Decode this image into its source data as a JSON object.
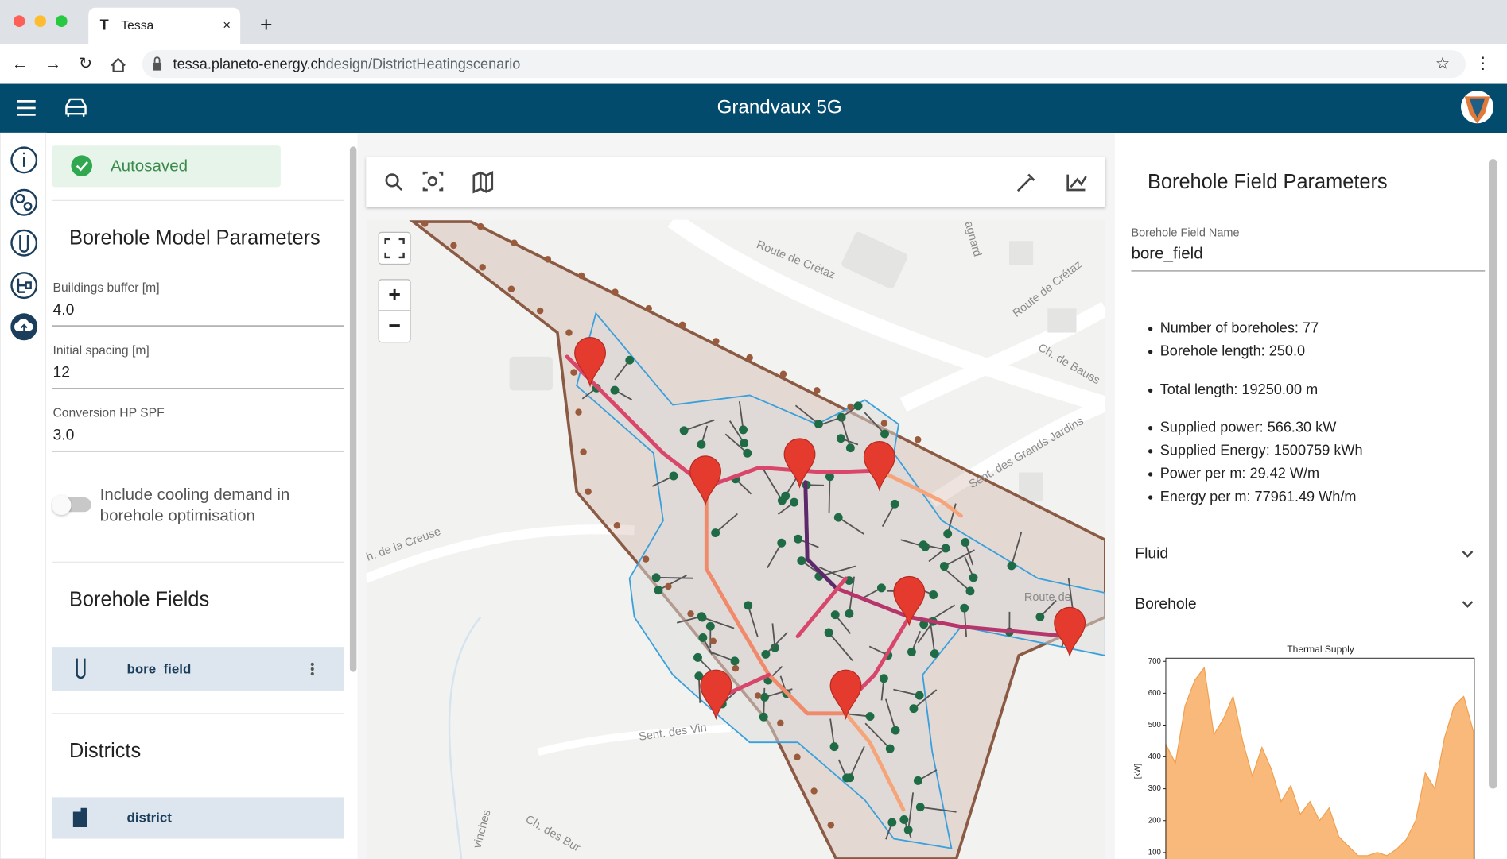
{
  "browser": {
    "tab_title": "Tessa",
    "new_tab": "+",
    "url_host": "tessa.planeto-energy.ch",
    "url_path": "design/DistrictHeatingscenario"
  },
  "header": {
    "title": "Grandvaux 5G"
  },
  "left_panel": {
    "status": "Autosaved",
    "section_title": "Borehole Model Parameters",
    "fields": [
      {
        "label": "Buildings buffer [m]",
        "value": "4.0"
      },
      {
        "label": "Initial spacing [m]",
        "value": "12"
      },
      {
        "label": "Conversion HP SPF",
        "value": "3.0"
      }
    ],
    "toggle_label": [
      "Include cooling demand in",
      "borehole optimisation"
    ],
    "borehole_fields": {
      "title": "Borehole Fields",
      "items": [
        "bore_field"
      ]
    },
    "districts": {
      "title": "Districts",
      "items": [
        "district"
      ]
    }
  },
  "map": {
    "zoom_in": "+",
    "zoom_out": "−",
    "labels": [
      "Route de Crétaz",
      "Route de Crétaz",
      "Ch. de Bauss",
      "Sent. des Grands Jardins",
      "h. de la Creuse",
      "Sent. des Vin",
      "Ch. des Bur",
      "agnard",
      "Route de",
      "vinches"
    ]
  },
  "right_panel": {
    "title": "Borehole Field Parameters",
    "name_label": "Borehole Field Name",
    "name_value": "bore_field",
    "stats": [
      "Number of boreholes: 77",
      "Borehole length: 250.0",
      "Total length: 19250.00 m",
      "Supplied power: 566.30 kW",
      "Supplied Energy: 1500759 kWh",
      "Power per m: 29.42 W/m",
      "Energy per m: 77961.49 Wh/m"
    ],
    "accordions": [
      "Fluid",
      "Borehole"
    ]
  },
  "thermal_chart": {
    "type": "area",
    "title": "Thermal Supply",
    "ylabel": "[kW]",
    "color": "#f9b97a",
    "ylim": [
      0,
      710
    ],
    "yticks": [
      100,
      200,
      300,
      400,
      500,
      600,
      700
    ],
    "values": [
      440,
      380,
      560,
      640,
      680,
      470,
      520,
      590,
      450,
      340,
      430,
      360,
      260,
      310,
      220,
      260,
      200,
      240,
      150,
      120,
      90,
      90,
      100,
      90,
      110,
      140,
      200,
      350,
      300,
      460,
      560,
      590,
      480
    ]
  }
}
